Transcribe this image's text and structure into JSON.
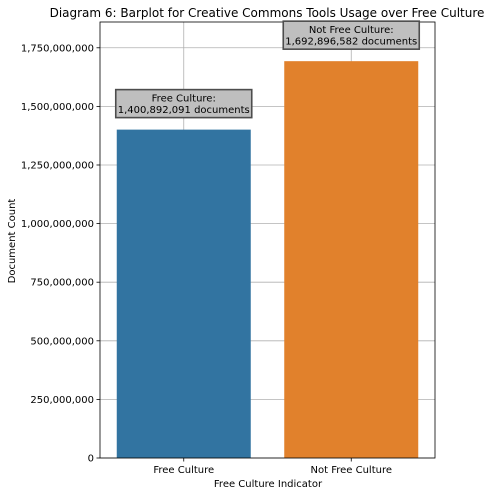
{
  "chart_data": {
    "type": "bar",
    "title": "Diagram 6: Barplot for Creative Commons Tools Usage over Free Culture",
    "xlabel": "Free Culture Indicator",
    "ylabel": "Document Count",
    "categories": [
      "Free Culture",
      "Not Free Culture"
    ],
    "values": [
      1400892091,
      1692896582
    ],
    "colors": [
      "#3274a1",
      "#e1812c"
    ],
    "ylim": [
      0,
      1860000000
    ],
    "yticks": [
      0,
      250000000,
      500000000,
      750000000,
      1000000000,
      1250000000,
      1500000000,
      1750000000
    ],
    "ytick_labels": [
      "0",
      "250,000,000",
      "500,000,000",
      "750,000,000",
      "1,000,000,000",
      "1,250,000,000",
      "1,500,000,000",
      "1,750,000,000"
    ],
    "grid": true,
    "annotations": [
      {
        "line1": "Free Culture:",
        "line2": "1,400,892,091 documents"
      },
      {
        "line1": "Not Free Culture:",
        "line2": "1,692,896,582 documents"
      }
    ]
  }
}
